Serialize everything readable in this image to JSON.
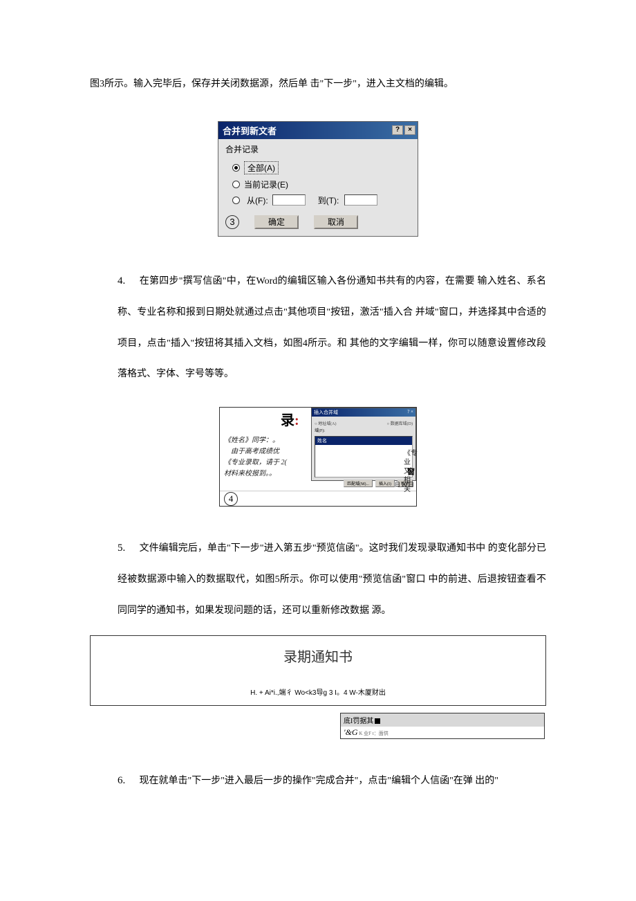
{
  "para_intro": "图3所示。输入完毕后，保存并关闭数据源，然后单 击\"下一步\"，进入主文档的编辑。",
  "dialog3": {
    "title": "合并到新文者",
    "help_icon": "?",
    "close_icon": "×",
    "group_label": "合并记录",
    "opt_all": "全部(A)",
    "opt_current": "当前记录(E)",
    "opt_from": "从(F):",
    "opt_to_label": "到(T):",
    "circled": "3",
    "btn_ok": "确定",
    "btn_cancel": "取消"
  },
  "step4": {
    "num": "4.",
    "text": "在第四步\"撰写信函\"中，在Word的编辑区输入各份通知书共有的内容，在需要 输入姓名、系名称、专业名称和报到日期处就通过点击\"其他项目\"按钮，激活\"插入合 并域\"窗口，并选择其中合适的项目，点击\"插入\"按钮将其插入文档，如图4所示。和 其他的文字编辑一样，你可以随意设置修改段落格式、字体、字号等等。"
  },
  "fig4": {
    "luchar": "录",
    "colon": ":",
    "panel_title": "插入合并域",
    "panel_title_ctrl": "? ×",
    "panel_row1_l": "○ 地址域(A)",
    "panel_row1_r": "○ 数据库域(D)",
    "panel_list_label": "域(F):",
    "panel_list_sel": "姓名",
    "panel_btn1": "匹配域(M)...",
    "panel_btn2": "插入(I)",
    "panel_btn3": "取消",
    "left_l1": "《姓名》同学：。",
    "left_l2": "　由于高考成绩优",
    "left_l3": "《专业录取，请于 2(",
    "left_l4": "材料来校报到。。",
    "right_l1": "《专业",
    "right_l2": "又相关",
    "seal": "窗",
    "date": "日 20 日",
    "circled": "4"
  },
  "step5": {
    "num": "5.",
    "text": "文件编辑完后，单击\"下一步\"进入第五步\"预览信函\"。这时我们发现录取通知书中 的变化部分已经被数据源中输入的数据取代，如图5所示。你可以使用\"预览信函\"窗口 中的前进、后退按钮查看不同同学的通知书，如果发现问题的话，还可以重新修改数据 源。"
  },
  "box": {
    "title": "录期通知书",
    "line": "H. + Ai*i.,端彳 Wo<k3导g 3 I。4 W-木厦财出"
  },
  "mini": {
    "r1_text": "底I罚据其",
    "r2_amp": "'&G",
    "r2_sm": " K 业F t：面供"
  },
  "step6": {
    "num": "6.",
    "text": "现在就单击\"下一步\"进入最后一步的操作\"完成合并\"，点击\"编辑个人信函\"在弹 出的\""
  }
}
